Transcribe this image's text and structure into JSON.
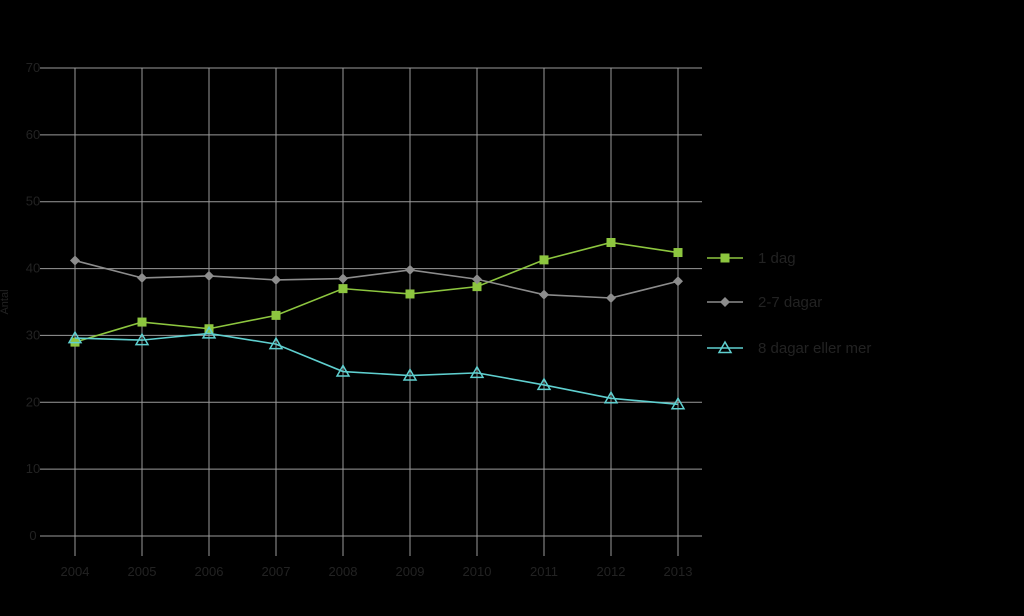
{
  "chart_data": {
    "type": "line",
    "title": "",
    "xlabel": "",
    "ylabel": "Antal",
    "x": [
      "2004",
      "2005",
      "2006",
      "2007",
      "2008",
      "2009",
      "2010",
      "2011",
      "2012",
      "2013"
    ],
    "yticks": [
      "0",
      "10",
      "20",
      "30",
      "40",
      "50",
      "60",
      "70"
    ],
    "ylim": [
      0,
      70
    ],
    "grid": true,
    "legend_position": "right",
    "series": [
      {
        "name": "1 dag",
        "values": [
          29,
          32,
          31,
          33,
          37,
          36.2,
          37.3,
          41.3,
          43.9,
          42.4
        ],
        "color": "#8dc63f",
        "marker": "square"
      },
      {
        "name": "2-7 dagar",
        "values": [
          41.2,
          38.6,
          38.9,
          38.3,
          38.5,
          39.8,
          38.4,
          36.1,
          35.6,
          38.1
        ],
        "color": "#8c8c8c",
        "marker": "diamond"
      },
      {
        "name": "8 dagar eller mer",
        "values": [
          29.6,
          29.3,
          30.3,
          28.7,
          24.6,
          24,
          24.4,
          22.6,
          20.6,
          19.7
        ],
        "color": "#5fcfcf",
        "marker": "triangle"
      }
    ]
  }
}
